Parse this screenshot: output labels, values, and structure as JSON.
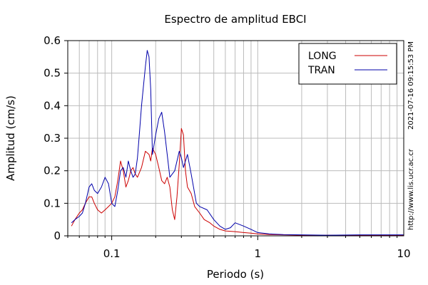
{
  "chart_data": {
    "type": "line",
    "title": "Espectro de amplitud EBCI",
    "xlabel": "Periodo (s)",
    "ylabel": "Amplitud (cm/s)",
    "x_scale": "log",
    "xlim": [
      0.05,
      10
    ],
    "ylim": [
      0,
      0.6
    ],
    "x_ticks": [
      {
        "value": 0.1,
        "label": "0.1"
      },
      {
        "value": 1,
        "label": "1"
      },
      {
        "value": 10,
        "label": "10"
      }
    ],
    "y_ticks": [
      {
        "value": 0,
        "label": "0"
      },
      {
        "value": 0.1,
        "label": "0.1"
      },
      {
        "value": 0.2,
        "label": "0.2"
      },
      {
        "value": 0.3,
        "label": "0.3"
      },
      {
        "value": 0.4,
        "label": "0.4"
      },
      {
        "value": 0.5,
        "label": "0.5"
      },
      {
        "value": 0.6,
        "label": "0.6"
      }
    ],
    "grid": true,
    "legend_position": "top-right",
    "series": [
      {
        "name": "LONG",
        "color": "#cc0000",
        "x": [
          0.053,
          0.056,
          0.06,
          0.063,
          0.066,
          0.07,
          0.073,
          0.076,
          0.08,
          0.085,
          0.09,
          0.095,
          0.1,
          0.105,
          0.11,
          0.115,
          0.12,
          0.125,
          0.13,
          0.135,
          0.14,
          0.145,
          0.15,
          0.16,
          0.17,
          0.18,
          0.185,
          0.19,
          0.2,
          0.21,
          0.22,
          0.23,
          0.24,
          0.25,
          0.26,
          0.27,
          0.28,
          0.29,
          0.3,
          0.31,
          0.32,
          0.33,
          0.35,
          0.37,
          0.4,
          0.43,
          0.47,
          0.5,
          0.55,
          0.6,
          0.7,
          0.8,
          0.9,
          1,
          1.2,
          1.5,
          2,
          3,
          5,
          7,
          10
        ],
        "y": [
          0.03,
          0.05,
          0.07,
          0.08,
          0.1,
          0.12,
          0.12,
          0.1,
          0.08,
          0.07,
          0.08,
          0.09,
          0.1,
          0.12,
          0.17,
          0.23,
          0.2,
          0.15,
          0.17,
          0.2,
          0.21,
          0.19,
          0.18,
          0.21,
          0.26,
          0.25,
          0.23,
          0.27,
          0.25,
          0.21,
          0.17,
          0.16,
          0.18,
          0.15,
          0.08,
          0.05,
          0.12,
          0.22,
          0.33,
          0.31,
          0.2,
          0.15,
          0.13,
          0.09,
          0.07,
          0.05,
          0.04,
          0.03,
          0.02,
          0.015,
          0.013,
          0.01,
          0.008,
          0.006,
          0.004,
          0.003,
          0.002,
          0.002,
          0.002,
          0.002,
          0.002
        ]
      },
      {
        "name": "TRAN",
        "color": "#0000aa",
        "x": [
          0.053,
          0.056,
          0.06,
          0.063,
          0.066,
          0.07,
          0.073,
          0.076,
          0.08,
          0.085,
          0.09,
          0.095,
          0.1,
          0.105,
          0.11,
          0.115,
          0.12,
          0.125,
          0.13,
          0.135,
          0.14,
          0.145,
          0.15,
          0.155,
          0.16,
          0.17,
          0.175,
          0.18,
          0.185,
          0.19,
          0.2,
          0.21,
          0.22,
          0.23,
          0.24,
          0.25,
          0.27,
          0.29,
          0.3,
          0.31,
          0.33,
          0.35,
          0.38,
          0.4,
          0.45,
          0.5,
          0.55,
          0.6,
          0.65,
          0.7,
          0.8,
          0.9,
          1,
          1.2,
          1.5,
          2,
          3,
          5,
          7,
          10
        ],
        "y": [
          0.04,
          0.05,
          0.06,
          0.07,
          0.1,
          0.15,
          0.16,
          0.14,
          0.13,
          0.15,
          0.18,
          0.16,
          0.1,
          0.09,
          0.14,
          0.2,
          0.21,
          0.18,
          0.23,
          0.2,
          0.18,
          0.19,
          0.24,
          0.32,
          0.4,
          0.52,
          0.57,
          0.55,
          0.45,
          0.25,
          0.31,
          0.36,
          0.38,
          0.32,
          0.25,
          0.18,
          0.2,
          0.26,
          0.24,
          0.21,
          0.25,
          0.19,
          0.1,
          0.09,
          0.08,
          0.05,
          0.03,
          0.02,
          0.025,
          0.04,
          0.03,
          0.02,
          0.01,
          0.006,
          0.004,
          0.003,
          0.002,
          0.003,
          0.003,
          0.003
        ]
      }
    ],
    "side_labels": {
      "timestamp": "2021-07-16 09:15:53 PM",
      "url": "http://www.lis.ucr.ac.cr"
    }
  }
}
